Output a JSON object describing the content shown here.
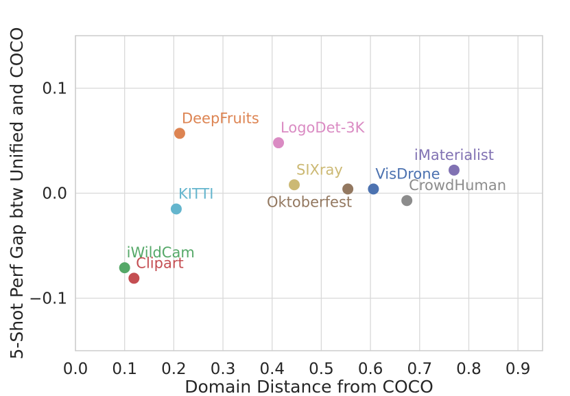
{
  "chart_data": {
    "type": "scatter",
    "xlabel": "Domain Distance from COCO",
    "ylabel": "5-Shot Perf Gap btw Unified and COCO",
    "xlim": [
      0.0,
      0.95
    ],
    "ylim": [
      -0.15,
      0.15
    ],
    "x_ticks": [
      0.0,
      0.1,
      0.2,
      0.3,
      0.4,
      0.5,
      0.6,
      0.7,
      0.8,
      0.9
    ],
    "x_tick_labels": [
      "0.0",
      "0.1",
      "0.2",
      "0.3",
      "0.4",
      "0.5",
      "0.6",
      "0.7",
      "0.8",
      "0.9"
    ],
    "y_ticks": [
      -0.1,
      0.0,
      0.1
    ],
    "y_tick_labels": [
      "−0.1",
      "0.0",
      "0.1"
    ],
    "grid": true,
    "points": [
      {
        "label": "DeepFruits",
        "x": 0.212,
        "y": 0.057,
        "color": "#dd8452",
        "label_pos": "above-right"
      },
      {
        "label": "LogoDet-3K",
        "x": 0.413,
        "y": 0.048,
        "color": "#da8bc3",
        "label_pos": "above-right"
      },
      {
        "label": "iMaterialist",
        "x": 0.77,
        "y": 0.022,
        "color": "#8172b3",
        "label_pos": "above"
      },
      {
        "label": "SIXray",
        "x": 0.445,
        "y": 0.008,
        "color": "#ccb974",
        "label_pos": "above-right"
      },
      {
        "label": "VisDrone",
        "x": 0.606,
        "y": 0.004,
        "color": "#4c72b0",
        "label_pos": "above-right"
      },
      {
        "label": "Oktoberfest",
        "x": 0.554,
        "y": 0.004,
        "color": "#937860",
        "label_pos": "below-left"
      },
      {
        "label": "CrowdHuman",
        "x": 0.674,
        "y": -0.007,
        "color": "#8c8c8c",
        "label_pos": "above-right"
      },
      {
        "label": "KITTI",
        "x": 0.205,
        "y": -0.015,
        "color": "#64b5cd",
        "label_pos": "above-right"
      },
      {
        "label": "iWildCam",
        "x": 0.1,
        "y": -0.071,
        "color": "#55a868",
        "label_pos": "above-right"
      },
      {
        "label": "Clipart",
        "x": 0.119,
        "y": -0.081,
        "color": "#c44e52",
        "label_pos": "above-right"
      }
    ]
  }
}
